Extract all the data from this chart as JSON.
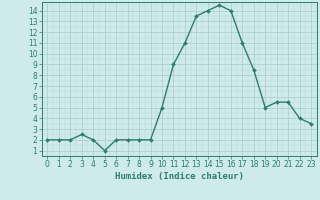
{
  "x": [
    0,
    1,
    2,
    3,
    4,
    5,
    6,
    7,
    8,
    9,
    10,
    11,
    12,
    13,
    14,
    15,
    16,
    17,
    18,
    19,
    20,
    21,
    22,
    23
  ],
  "y": [
    2,
    2,
    2,
    2.5,
    2,
    1,
    2,
    2,
    2,
    2,
    5,
    9,
    11,
    13.5,
    14,
    14.5,
    14,
    11,
    8.5,
    5,
    5.5,
    5.5,
    4,
    3.5
  ],
  "line_color": "#2e7d6e",
  "marker": "D",
  "marker_size": 2.0,
  "bg_color": "#ceeaea",
  "grid_minor_color": "#b8d8d8",
  "grid_major_color": "#aacaca",
  "xlabel": "Humidex (Indice chaleur)",
  "ylim_min": 0.5,
  "ylim_max": 14.8,
  "xlim_min": -0.5,
  "xlim_max": 23.5,
  "yticks": [
    1,
    2,
    3,
    4,
    5,
    6,
    7,
    8,
    9,
    10,
    11,
    12,
    13,
    14
  ],
  "xticks": [
    0,
    1,
    2,
    3,
    4,
    5,
    6,
    7,
    8,
    9,
    10,
    11,
    12,
    13,
    14,
    15,
    16,
    17,
    18,
    19,
    20,
    21,
    22,
    23
  ],
  "tick_fontsize": 5.5,
  "xlabel_fontsize": 6.5,
  "line_width": 1.0
}
